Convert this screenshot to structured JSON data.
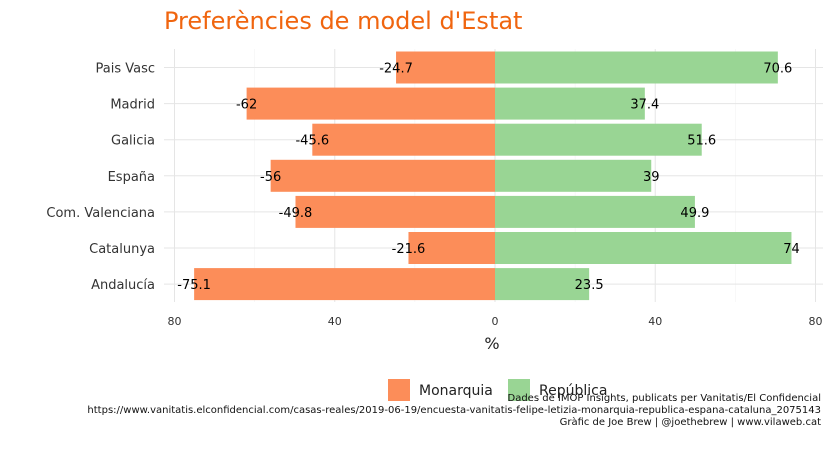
{
  "chart_data": {
    "type": "bar",
    "orientation": "horizontal",
    "stacked": "diverging",
    "title": "Preferències de model d'Estat",
    "xlabel": "%",
    "ylabel": "",
    "categories": [
      "Pais Vasc",
      "Madrid",
      "Galicia",
      "España",
      "Com. Valenciana",
      "Catalunya",
      "Andalucía"
    ],
    "series": [
      {
        "name": "Monarquia",
        "color": "#fc8d59",
        "values": [
          -24.7,
          -62,
          -45.6,
          -56,
          -49.8,
          -21.6,
          -75.1
        ]
      },
      {
        "name": "República",
        "color": "#99d594",
        "values": [
          70.6,
          37.4,
          51.6,
          39,
          49.9,
          74,
          23.5
        ]
      }
    ],
    "xlim": [
      -80,
      80
    ],
    "xticks": [
      -80,
      -40,
      0,
      40,
      80
    ],
    "xtick_labels": [
      "80",
      "40",
      "0",
      "40",
      "80"
    ],
    "grid": true,
    "legend_position": "bottom",
    "caption": [
      "Dades de IMOP Insights, publicats per Vanitatis/El Confidencial",
      "https://www.vanitatis.elconfidencial.com/casas-reales/2019-06-19/encuesta-vanitatis-felipe-letizia-monarquia-republica-espana-cataluna_2075143",
      "Gràfic de Joe Brew | @joethebrew | www.vilaweb.cat"
    ]
  }
}
